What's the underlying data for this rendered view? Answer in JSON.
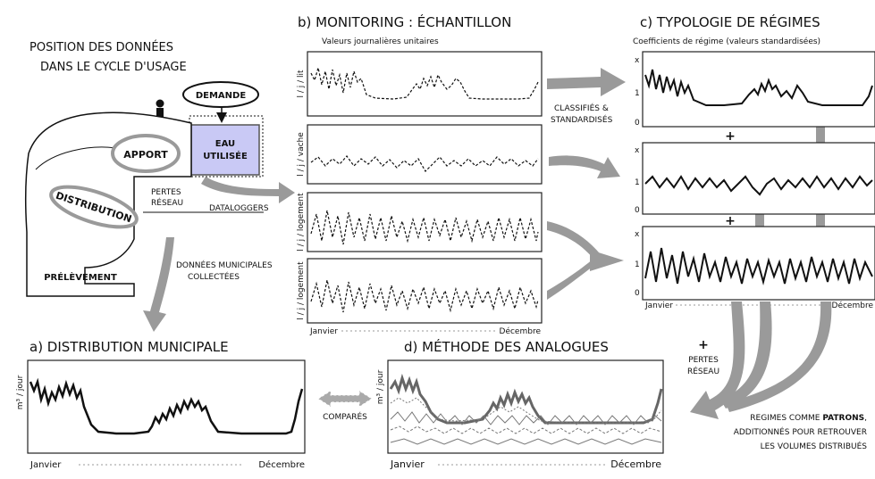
{
  "colors": {
    "arrow": "#9a9a9a",
    "water_used": "#c9c9f5",
    "accent_text": "#1b2a7a",
    "line": "#111111",
    "grey_line": "#666666"
  },
  "cycle": {
    "title_line1": "POSITION DES DONNÉES",
    "title_line2": "DANS LE CYCLE D'USAGE",
    "demande": "DEMANDE",
    "apport": "APPORT",
    "eau_line1": "EAU",
    "eau_line2": "UTILISÉE",
    "distribution": "DISTRIBUTION",
    "pertes_line1": "PERTES",
    "pertes_line2": "RÉSEAU",
    "dataloggers": "DATALOGGERS",
    "prelevement": "PRÉLÈVEMENT",
    "donnees_line1": "DONNÉES MUNICIPALES",
    "donnees_line2": "COLLECTÉES",
    "person_icon": "person-icon"
  },
  "panel_b": {
    "title": "b) MONITORING : ÉCHANTILLON",
    "subtitle": "Valeurs journalières unitaires",
    "ylabels": [
      "l / j / lit",
      "l / j / vache",
      "l / j / logement",
      "l / j / logement"
    ],
    "x_start": "Janvier",
    "x_end": "Décembre",
    "arrow_label_line1": "CLASSIFIÉS &",
    "arrow_label_line2": "STANDARDISÉS"
  },
  "panel_c": {
    "title": "c) TYPOLOGIE DE RÉGIMES",
    "subtitle": "Coefficients de régime (valeurs standardisées)",
    "tick_x": "x",
    "tick_1": "1",
    "tick_0": "0",
    "plus": "+",
    "x_start": "Janvier",
    "x_end": "Décembre"
  },
  "panel_a": {
    "title": "a) DISTRIBUTION MUNICIPALE",
    "ylabel": "m³ / jour",
    "x_start": "Janvier",
    "x_end": "Décembre"
  },
  "panel_d": {
    "title": "d) MÉTHODE DES ANALOGUES",
    "ylabel": "m³ / jour",
    "x_start": "Janvier",
    "x_end": "Décembre",
    "compares": "COMPARÉS",
    "pertes_plus": "+",
    "pertes_line1": "PERTES",
    "pertes_line2": "RÉSEAU",
    "regimes_line1_pre": "REGIMES COMME ",
    "regimes_line1_bold": "PATRONS",
    "regimes_line1_post": ",",
    "regimes_line2": "ADDITIONNÉS POUR RETROUVER",
    "regimes_line3": "LES VOLUMES DISTRIBUÉS"
  }
}
